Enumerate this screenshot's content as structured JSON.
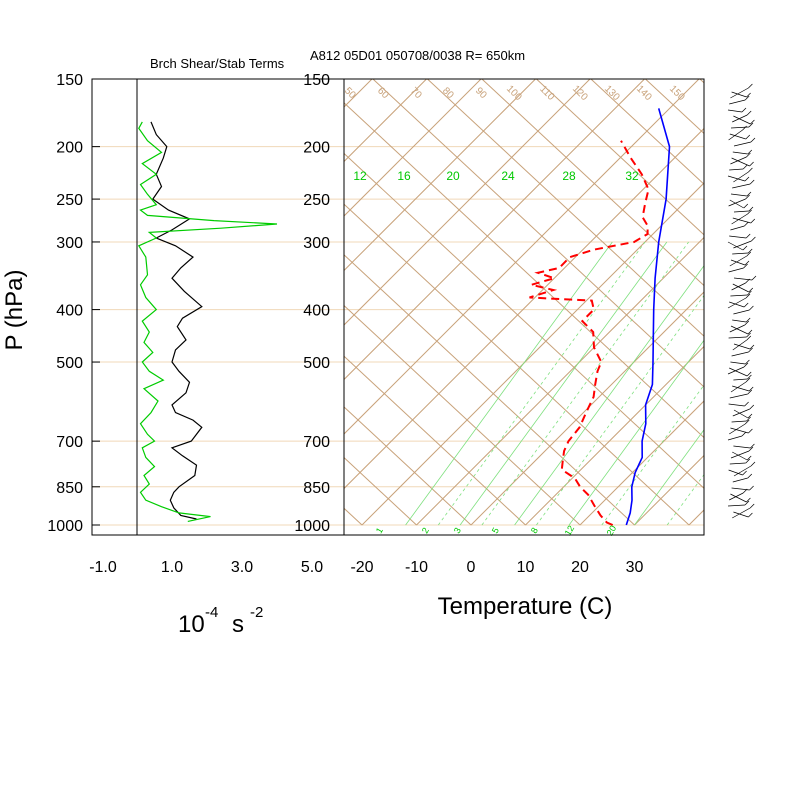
{
  "titles": {
    "left_panel": "Brch Shear/Stab Terms",
    "right_panel": "A812 05D01 050708/0038 R= 650km"
  },
  "axes": {
    "y_label": "P (hPa)",
    "pressure_ticks": [
      "150",
      "200",
      "250",
      "300",
      "400",
      "500",
      "700",
      "850",
      "1000"
    ],
    "left_x_ticks": [
      "-1.0",
      "1.0",
      "3.0",
      "5.0"
    ],
    "left_x_unit_base": "10",
    "left_x_unit_exp": "-4",
    "left_x_unit_rest": "s",
    "left_x_unit_exp2": "-2",
    "temp_ticks": [
      "-20",
      "-10",
      "0",
      "10",
      "20",
      "30"
    ],
    "temp_label": "Temperature (C)"
  },
  "chart_data": [
    {
      "type": "line",
      "title": "Brch Shear/Stab Terms",
      "xlabel": "10-4 s -2",
      "ylabel": "P (hPa)",
      "xlim": [
        -1.0,
        5.0
      ],
      "ylim": [
        1000,
        150
      ],
      "y_scale": "log-pressure",
      "grid": "horizontal lines at tick pressures",
      "colors": {
        "shear": "#000000",
        "stability": "#00cc00"
      },
      "series": [
        {
          "color": "#000000",
          "points": [
            [
              1.7,
              975
            ],
            [
              1.25,
              960
            ],
            [
              1.05,
              930
            ],
            [
              0.95,
              900
            ],
            [
              1.05,
              870
            ],
            [
              1.2,
              850
            ],
            [
              1.65,
              810
            ],
            [
              1.7,
              775
            ],
            [
              1.3,
              745
            ],
            [
              1.0,
              720
            ],
            [
              1.55,
              700
            ],
            [
              1.85,
              660
            ],
            [
              1.6,
              640
            ],
            [
              1.1,
              620
            ],
            [
              1.0,
              600
            ],
            [
              1.4,
              570
            ],
            [
              1.5,
              545
            ],
            [
              1.2,
              520
            ],
            [
              1.0,
              500
            ],
            [
              1.1,
              475
            ],
            [
              1.4,
              455
            ],
            [
              1.15,
              430
            ],
            [
              1.3,
              415
            ],
            [
              1.85,
              395
            ],
            [
              1.35,
              370
            ],
            [
              1.0,
              350
            ],
            [
              1.25,
              335
            ],
            [
              1.6,
              320
            ],
            [
              1.1,
              305
            ],
            [
              0.55,
              295
            ],
            [
              1.0,
              285
            ],
            [
              1.5,
              272
            ],
            [
              0.9,
              262
            ],
            [
              0.45,
              250
            ],
            [
              0.7,
              237
            ],
            [
              0.55,
              225
            ],
            [
              0.75,
              210
            ],
            [
              0.85,
              200
            ],
            [
              0.55,
              190
            ],
            [
              0.4,
              180
            ]
          ]
        },
        {
          "color": "#00cc00",
          "points": [
            [
              1.45,
              985
            ],
            [
              2.1,
              965
            ],
            [
              1.2,
              950
            ],
            [
              0.7,
              925
            ],
            [
              0.25,
              900
            ],
            [
              0.1,
              870
            ],
            [
              0.35,
              840
            ],
            [
              0.2,
              810
            ],
            [
              0.5,
              780
            ],
            [
              0.25,
              750
            ],
            [
              0.15,
              720
            ],
            [
              0.5,
              700
            ],
            [
              0.3,
              680
            ],
            [
              0.1,
              650
            ],
            [
              0.4,
              620
            ],
            [
              0.6,
              590
            ],
            [
              0.2,
              560
            ],
            [
              0.75,
              540
            ],
            [
              0.35,
              520
            ],
            [
              0.15,
              500
            ],
            [
              0.45,
              480
            ],
            [
              0.2,
              460
            ],
            [
              0.35,
              440
            ],
            [
              0.15,
              420
            ],
            [
              0.55,
              400
            ],
            [
              0.25,
              380
            ],
            [
              0.1,
              360
            ],
            [
              0.3,
              345
            ],
            [
              0.25,
              320
            ],
            [
              0.05,
              305
            ],
            [
              0.55,
              295
            ],
            [
              0.35,
              288
            ],
            [
              2.4,
              283
            ],
            [
              4.0,
              278
            ],
            [
              2.2,
              274
            ],
            [
              0.3,
              268
            ],
            [
              0.1,
              262
            ],
            [
              0.55,
              256
            ],
            [
              0.3,
              245
            ],
            [
              0.1,
              235
            ],
            [
              0.55,
              225
            ],
            [
              0.15,
              215
            ],
            [
              0.7,
              205
            ],
            [
              0.3,
              195
            ],
            [
              0.05,
              185
            ],
            [
              0.15,
              180
            ]
          ]
        }
      ]
    },
    {
      "type": "line",
      "title": "A812 05D01 050708/0038 R= 650km",
      "xlabel": "Temperature (C)",
      "ylabel": "P (hPa)",
      "xlim": [
        -25,
        39
      ],
      "ylim": [
        1000,
        150
      ],
      "y_scale": "log-pressure",
      "skew": "skew-T / log-P thermodynamic diagram",
      "mixing_ratio_labels": [
        "12",
        "16",
        "20",
        "24",
        "28",
        "32"
      ],
      "dry_adiabat_labels": [
        "50",
        "60",
        "70",
        "80",
        "90",
        "100",
        "110",
        "120",
        "130",
        "140",
        "150"
      ],
      "bottom_mixing_labels": [
        "1",
        "2",
        "3",
        "5",
        "8",
        "12",
        "20"
      ],
      "colors": {
        "temperature": "#0000ff",
        "dewpoint": "#ff0000",
        "isotherms_adiabats": "#c8a27a",
        "mixing_ratio": "#00cc00"
      },
      "series": [
        {
          "color": "#0000ff",
          "points": [
            [
              28.5,
              1000
            ],
            [
              27.0,
              950
            ],
            [
              25.0,
              900
            ],
            [
              22.5,
              850
            ],
            [
              20.5,
              800
            ],
            [
              19.0,
              750
            ],
            [
              16.0,
              700
            ],
            [
              13.5,
              650
            ],
            [
              10.0,
              600
            ],
            [
              7.5,
              550
            ],
            [
              3.5,
              500
            ],
            [
              -1.0,
              450
            ],
            [
              -6.0,
              400
            ],
            [
              -11.5,
              350
            ],
            [
              -17.5,
              300
            ],
            [
              -24.0,
              250
            ],
            [
              -33.0,
              200
            ],
            [
              -42.0,
              170
            ]
          ]
        },
        {
          "color": "#ff0000",
          "points": [
            [
              26.0,
              1000
            ],
            [
              24.5,
              990
            ],
            [
              22.0,
              960
            ],
            [
              19.0,
              920
            ],
            [
              16.0,
              880
            ],
            [
              13.0,
              850
            ],
            [
              10.5,
              820
            ],
            [
              6.5,
              790
            ],
            [
              5.0,
              760
            ],
            [
              3.5,
              730
            ],
            [
              2.5,
              700
            ],
            [
              2.0,
              660
            ],
            [
              0.5,
              620
            ],
            [
              -1.0,
              580
            ],
            [
              -3.0,
              550
            ],
            [
              -5.0,
              520
            ],
            [
              -6.0,
              500
            ],
            [
              -10.0,
              470
            ],
            [
              -13.0,
              440
            ],
            [
              -17.0,
              420
            ],
            [
              -17.0,
              400
            ],
            [
              -19.0,
              385
            ],
            [
              -31.0,
              380
            ],
            [
              -28.0,
              368
            ],
            [
              -33.0,
              360
            ],
            [
              -30.0,
              350
            ],
            [
              -34.0,
              342
            ],
            [
              -31.0,
              335
            ],
            [
              -31.0,
              320
            ],
            [
              -28.0,
              310
            ],
            [
              -25.0,
              305
            ],
            [
              -22.0,
              300
            ],
            [
              -21.0,
              290
            ],
            [
              -22.5,
              280
            ],
            [
              -25.0,
              270
            ],
            [
              -27.0,
              255
            ],
            [
              -29.0,
              240
            ],
            [
              -33.0,
              225
            ],
            [
              -38.0,
              210
            ],
            [
              -43.0,
              195
            ]
          ]
        }
      ]
    }
  ],
  "wind_barbs": {
    "description_only": false
  }
}
